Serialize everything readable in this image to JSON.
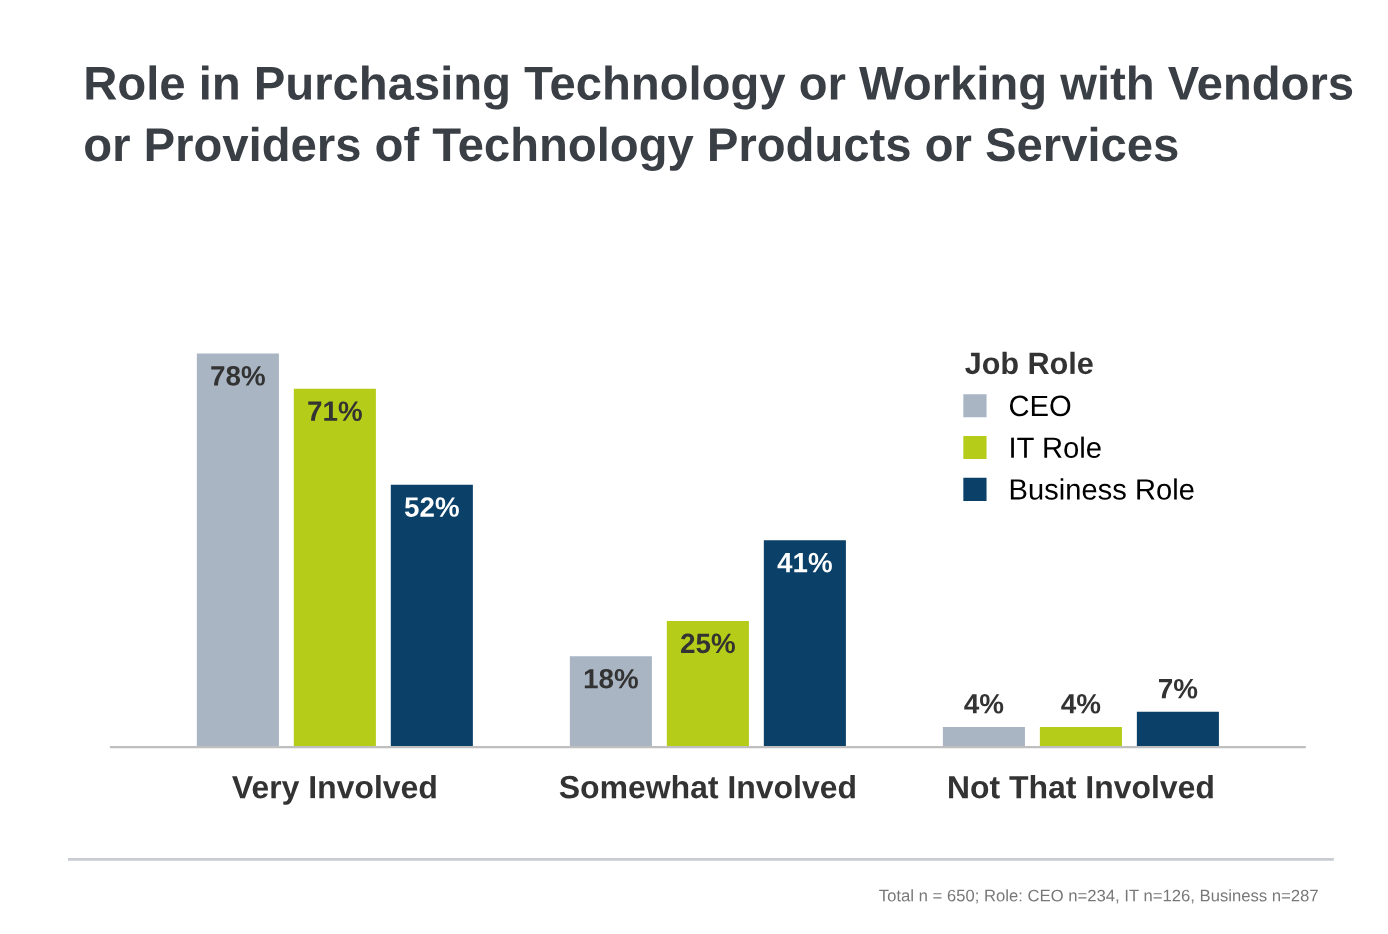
{
  "chart_data": {
    "type": "bar",
    "title": "Role in Purchasing Technology or Working with Vendors\nor Providers of Technology Products or Services",
    "categories": [
      "Very Involved",
      "Somewhat Involved",
      "Not That Involved"
    ],
    "legend_title": "Job Role",
    "series": [
      {
        "name": "CEO",
        "color": "#a9b5c3",
        "values": [
          78,
          18,
          4
        ],
        "value_labels": [
          "78%",
          "18%",
          "4%"
        ]
      },
      {
        "name": "IT Role",
        "color": "#b5cc18",
        "values": [
          71,
          25,
          4
        ],
        "value_labels": [
          "71%",
          "25%",
          "4%"
        ]
      },
      {
        "name": "Business Role",
        "color": "#0b4168",
        "values": [
          52,
          41,
          7
        ],
        "value_labels": [
          "52%",
          "41%",
          "7%"
        ]
      }
    ],
    "legend": "top right",
    "grid": false,
    "annotations": [
      "Total n = 650; Role: CEO n=234, IT n=126, Business n=287"
    ]
  }
}
